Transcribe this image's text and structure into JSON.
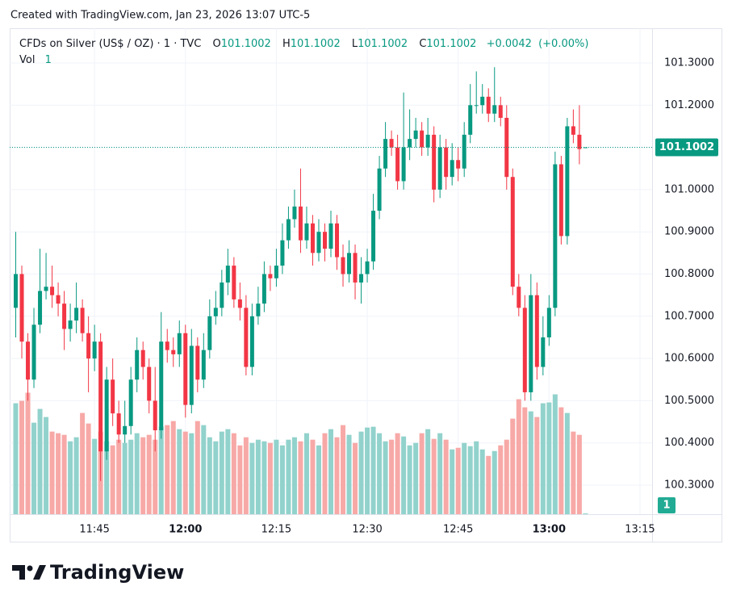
{
  "header": {
    "created": "Created with TradingView.com, Jan 23, 2026 13:07 UTC-5"
  },
  "legend": {
    "symbol": "CFDs on Silver (US$ / OZ) · 1 · TVC",
    "o_label": "O",
    "o": 101.1002,
    "h_label": "H",
    "h": 101.1002,
    "l_label": "L",
    "l": 101.1002,
    "c_label": "C",
    "c": 101.1002,
    "change": "+0.0042",
    "change_pct": "(+0.00%)",
    "vol_label": "Vol",
    "vol": 1
  },
  "footer": {
    "brand": "TradingView"
  },
  "chart_data": {
    "type": "candlestick",
    "up_color": "#089981",
    "down_color": "#f23645",
    "volume_up_color": "#92d2cc",
    "volume_down_color": "#f7a9a7",
    "grid": true,
    "x": [
      "11:32",
      "11:33",
      "11:34",
      "11:35",
      "11:36",
      "11:37",
      "11:38",
      "11:39",
      "11:40",
      "11:41",
      "11:42",
      "11:43",
      "11:44",
      "11:45",
      "11:46",
      "11:47",
      "11:48",
      "11:49",
      "11:50",
      "11:51",
      "11:52",
      "11:53",
      "11:54",
      "11:55",
      "11:56",
      "11:57",
      "11:58",
      "11:59",
      "12:00",
      "12:01",
      "12:02",
      "12:03",
      "12:04",
      "12:05",
      "12:06",
      "12:07",
      "12:08",
      "12:09",
      "12:10",
      "12:11",
      "12:12",
      "12:13",
      "12:14",
      "12:15",
      "12:16",
      "12:17",
      "12:18",
      "12:19",
      "12:20",
      "12:21",
      "12:22",
      "12:23",
      "12:24",
      "12:25",
      "12:26",
      "12:27",
      "12:28",
      "12:29",
      "12:30",
      "12:31",
      "12:32",
      "12:33",
      "12:34",
      "12:35",
      "12:36",
      "12:37",
      "12:38",
      "12:39",
      "12:40",
      "12:41",
      "12:42",
      "12:43",
      "12:44",
      "12:45",
      "12:46",
      "12:47",
      "12:48",
      "12:49",
      "12:50",
      "12:51",
      "12:52",
      "12:53",
      "12:54",
      "12:55",
      "12:56",
      "12:57",
      "12:58",
      "12:59",
      "13:00",
      "13:01",
      "13:02",
      "13:03",
      "13:04",
      "13:05",
      "13:06"
    ],
    "open": [
      100.72,
      100.8,
      100.64,
      100.55,
      100.68,
      100.76,
      100.77,
      100.75,
      100.73,
      100.67,
      100.69,
      100.72,
      100.66,
      100.6,
      100.64,
      100.38,
      100.55,
      100.47,
      100.42,
      100.44,
      100.55,
      100.62,
      100.58,
      100.5,
      100.43,
      100.64,
      100.62,
      100.61,
      100.66,
      100.49,
      100.63,
      100.55,
      100.62,
      100.7,
      100.72,
      100.78,
      100.82,
      100.74,
      100.72,
      100.58,
      100.7,
      100.73,
      100.8,
      100.79,
      100.82,
      100.88,
      100.93,
      100.96,
      100.88,
      100.92,
      100.85,
      100.9,
      100.86,
      100.92,
      100.84,
      100.8,
      100.85,
      100.78,
      100.8,
      100.83,
      100.95,
      101.05,
      101.12,
      101.1,
      101.02,
      101.1,
      101.12,
      101.14,
      101.1,
      101.13,
      101.0,
      101.1,
      101.03,
      101.07,
      101.05,
      101.13,
      101.2,
      101.2,
      101.22,
      101.18,
      101.2,
      101.17,
      101.03,
      100.77,
      100.72,
      100.52,
      100.75,
      100.58,
      100.65,
      100.72,
      101.06,
      100.89,
      101.15,
      101.13,
      101.1002
    ],
    "high": [
      100.9,
      100.82,
      100.66,
      100.72,
      100.86,
      100.85,
      100.82,
      100.78,
      100.76,
      100.73,
      100.78,
      100.74,
      100.7,
      100.68,
      100.66,
      100.58,
      100.6,
      100.5,
      100.5,
      100.58,
      100.65,
      100.64,
      100.6,
      100.58,
      100.71,
      100.67,
      100.65,
      100.69,
      100.68,
      100.67,
      100.65,
      100.66,
      100.74,
      100.76,
      100.81,
      100.86,
      100.84,
      100.78,
      100.75,
      100.73,
      100.77,
      100.83,
      100.82,
      100.86,
      100.92,
      100.96,
      101.0,
      101.05,
      100.96,
      100.94,
      100.93,
      100.92,
      100.95,
      100.94,
      100.87,
      100.88,
      100.87,
      100.84,
      100.86,
      100.99,
      101.08,
      101.16,
      101.14,
      101.13,
      101.23,
      101.19,
      101.17,
      101.16,
      101.17,
      101.15,
      101.13,
      101.12,
      101.11,
      101.1,
      101.16,
      101.25,
      101.28,
      101.25,
      101.24,
      101.29,
      101.22,
      101.2,
      101.05,
      100.8,
      100.75,
      100.8,
      100.78,
      100.7,
      100.75,
      101.09,
      101.08,
      101.17,
      101.19,
      101.2,
      101.1002
    ],
    "low": [
      100.65,
      100.6,
      100.5,
      100.53,
      100.66,
      100.74,
      100.72,
      100.7,
      100.62,
      100.64,
      100.66,
      100.64,
      100.52,
      100.57,
      100.31,
      100.36,
      100.44,
      100.4,
      100.4,
      100.42,
      100.52,
      100.55,
      100.47,
      100.38,
      100.41,
      100.59,
      100.58,
      100.58,
      100.46,
      100.47,
      100.52,
      100.53,
      100.6,
      100.68,
      100.7,
      100.75,
      100.72,
      100.69,
      100.56,
      100.56,
      100.68,
      100.71,
      100.76,
      100.77,
      100.8,
      100.86,
      100.91,
      100.85,
      100.86,
      100.82,
      100.83,
      100.83,
      100.84,
      100.81,
      100.77,
      100.78,
      100.74,
      100.73,
      100.78,
      100.81,
      100.93,
      101.03,
      101.08,
      101.0,
      101.0,
      101.07,
      101.1,
      101.08,
      101.08,
      100.97,
      100.98,
      101.0,
      101.01,
      101.02,
      101.03,
      101.11,
      101.18,
      101.18,
      101.16,
      101.16,
      101.15,
      101.0,
      100.75,
      100.7,
      100.5,
      100.5,
      100.55,
      100.56,
      100.63,
      100.7,
      100.87,
      100.87,
      101.11,
      101.06,
      101.1002
    ],
    "close": [
      100.8,
      100.64,
      100.55,
      100.68,
      100.76,
      100.77,
      100.75,
      100.73,
      100.67,
      100.69,
      100.72,
      100.66,
      100.6,
      100.64,
      100.38,
      100.55,
      100.47,
      100.42,
      100.44,
      100.55,
      100.62,
      100.58,
      100.5,
      100.43,
      100.64,
      100.62,
      100.61,
      100.66,
      100.49,
      100.63,
      100.55,
      100.62,
      100.7,
      100.72,
      100.78,
      100.82,
      100.74,
      100.72,
      100.58,
      100.7,
      100.73,
      100.8,
      100.79,
      100.82,
      100.88,
      100.93,
      100.96,
      100.88,
      100.92,
      100.85,
      100.9,
      100.86,
      100.92,
      100.84,
      100.8,
      100.85,
      100.78,
      100.8,
      100.83,
      100.95,
      101.05,
      101.12,
      101.1,
      101.02,
      101.1,
      101.12,
      101.14,
      101.1,
      101.13,
      101.0,
      101.1,
      101.03,
      101.07,
      101.05,
      101.13,
      101.2,
      101.2,
      101.22,
      101.18,
      101.2,
      101.17,
      101.03,
      100.77,
      100.72,
      100.52,
      100.75,
      100.58,
      100.65,
      100.72,
      101.06,
      100.89,
      101.15,
      101.13,
      101.096,
      101.1002
    ],
    "volume": [
      137,
      140,
      150,
      113,
      130,
      120,
      102,
      100,
      98,
      90,
      95,
      125,
      112,
      93,
      102,
      90,
      85,
      92,
      88,
      92,
      100,
      95,
      98,
      92,
      108,
      110,
      115,
      105,
      102,
      100,
      115,
      110,
      95,
      90,
      102,
      105,
      100,
      85,
      95,
      88,
      92,
      90,
      88,
      92,
      85,
      92,
      95,
      90,
      100,
      92,
      85,
      100,
      105,
      95,
      110,
      98,
      88,
      102,
      107,
      108,
      100,
      90,
      92,
      100,
      96,
      85,
      88,
      100,
      105,
      93,
      100,
      92,
      80,
      82,
      88,
      84,
      90,
      80,
      72,
      78,
      85,
      92,
      118,
      142,
      132,
      127,
      120,
      137,
      138,
      148,
      132,
      125,
      102,
      98,
      1
    ],
    "xlim": [
      "11:31",
      "13:17"
    ],
    "xticks": [
      "11:45",
      "12:00",
      "12:15",
      "12:30",
      "12:45",
      "13:00",
      "13:15"
    ],
    "ylim": [
      100.2312,
      101.3822
    ],
    "yticks": [
      {
        "value": 100.3,
        "label": "100.3000"
      },
      {
        "value": 100.4,
        "label": "100.4000"
      },
      {
        "value": 100.5,
        "label": "100.5000"
      },
      {
        "value": 100.6,
        "label": "100.6000"
      },
      {
        "value": 100.7,
        "label": "100.7000"
      },
      {
        "value": 100.8,
        "label": "100.8000"
      },
      {
        "value": 100.9,
        "label": "100.9000"
      },
      {
        "value": 101.0,
        "label": "101.0000"
      },
      {
        "value": 101.1,
        "label": "101.1000"
      },
      {
        "value": 101.2,
        "label": "101.2000"
      },
      {
        "value": 101.3,
        "label": "101.3000"
      }
    ]
  }
}
